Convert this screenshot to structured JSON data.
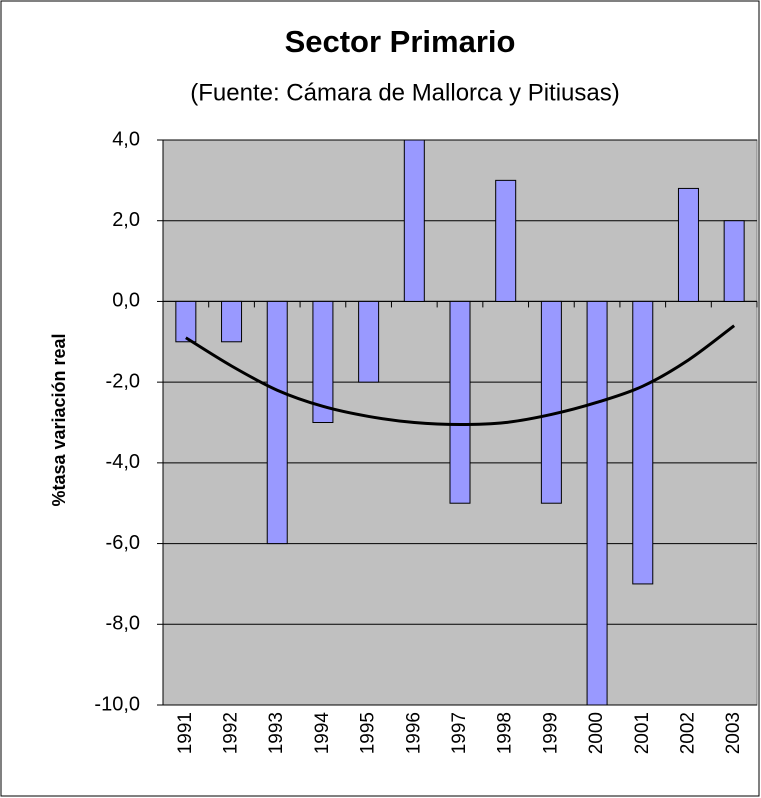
{
  "chart_data": {
    "type": "bar",
    "title": "Sector Primario",
    "subtitle": "(Fuente: Cámara de Mallorca y Pitiusas)",
    "y_label": "%tasa variación real",
    "categories": [
      "1991",
      "1992",
      "1993",
      "1994",
      "1995",
      "1996",
      "1997",
      "1998",
      "1999",
      "2000",
      "2001",
      "2002",
      "2003"
    ],
    "values": [
      -1,
      -1,
      -6,
      -3,
      -2,
      4,
      -5,
      3,
      -5,
      -10,
      -7,
      2.8,
      2.0
    ],
    "color": "#9999ff",
    "trendline": {
      "color": "#000000",
      "values": [
        -0.9,
        -1.6,
        -2.2,
        -2.6,
        -2.85,
        -3.0,
        -3.05,
        -3.0,
        -2.8,
        -2.5,
        -2.1,
        -1.45,
        -0.6
      ]
    },
    "ylim": [
      -10,
      4
    ],
    "yticks": [
      {
        "value": -10,
        "label": "-10,0"
      },
      {
        "value": -8,
        "label": "-8,0"
      },
      {
        "value": -6,
        "label": "-6,0"
      },
      {
        "value": -4,
        "label": "-4,0"
      },
      {
        "value": -2,
        "label": "-2,0"
      },
      {
        "value": 0,
        "label": "0,0"
      },
      {
        "value": 2,
        "label": "2,0"
      },
      {
        "value": 4,
        "label": "4,0"
      }
    ],
    "grid": true
  }
}
